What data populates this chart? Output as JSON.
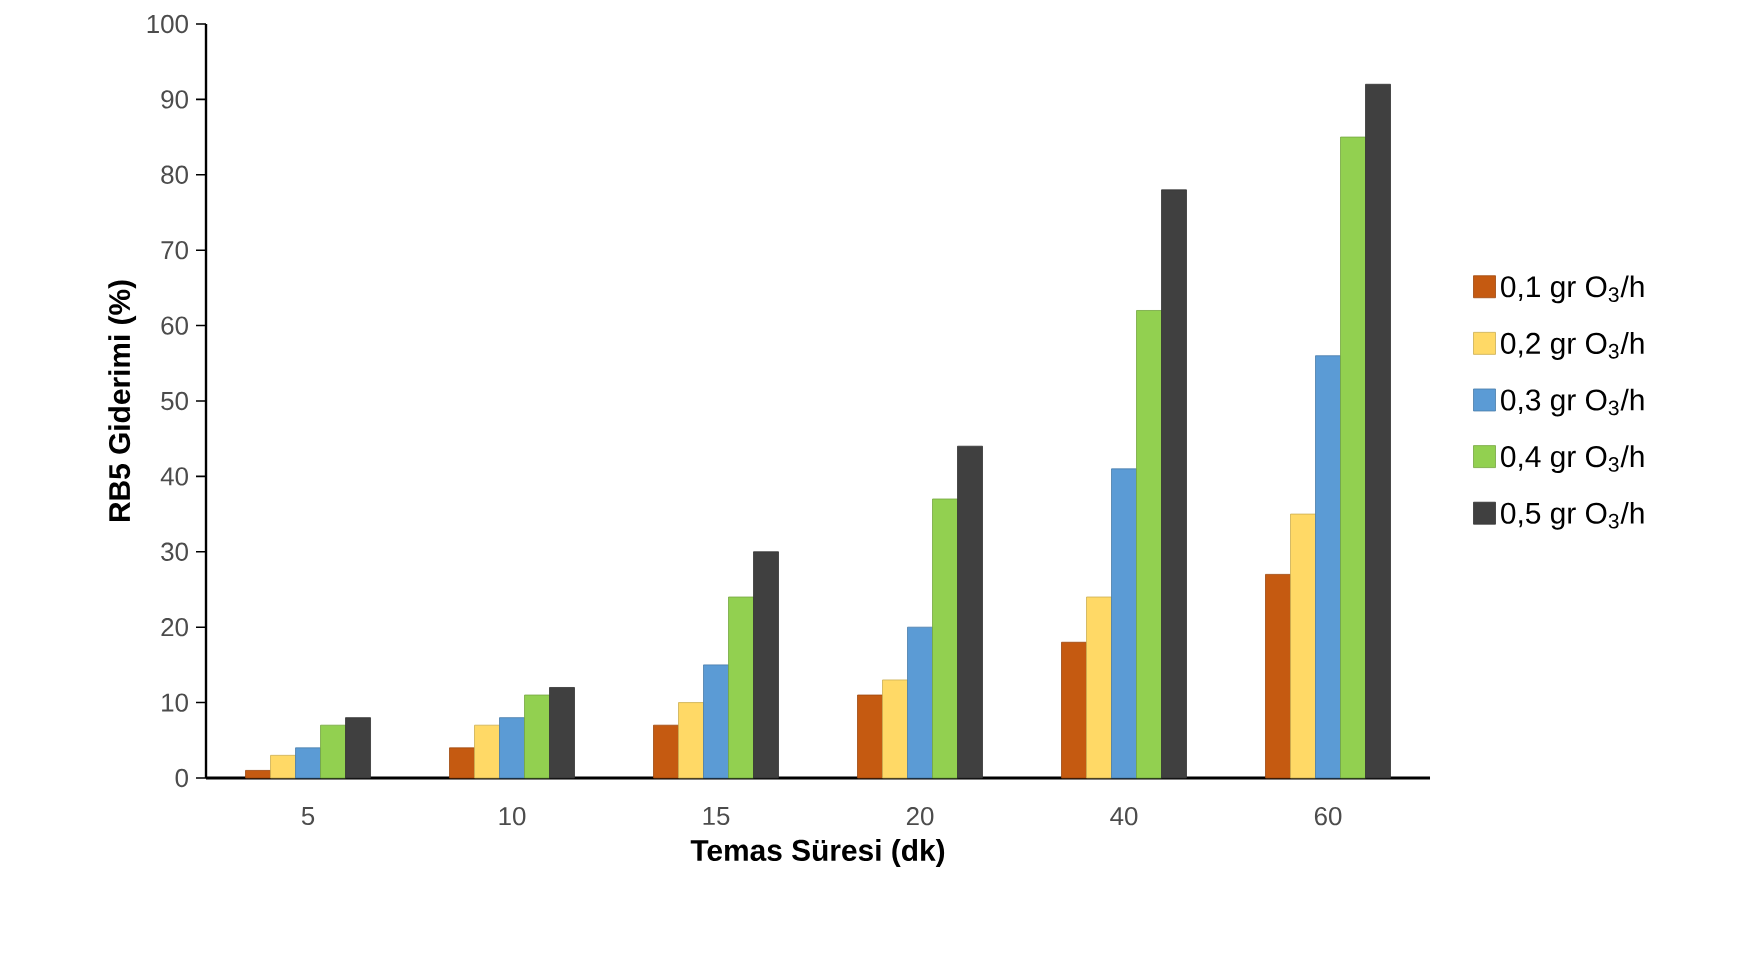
{
  "chart_data": {
    "type": "bar",
    "xlabel": "Temas Süresi (dk)",
    "ylabel": "RB5 Giderimi (%)",
    "categories": [
      "5",
      "10",
      "15",
      "20",
      "40",
      "60"
    ],
    "series": [
      {
        "name": "0,1 gr O$_{3}$/h",
        "color": "#c55a11",
        "values": [
          1,
          4,
          7,
          11,
          18,
          27
        ]
      },
      {
        "name": "0,2 gr O$_{3}$/h",
        "color": "#ffd966",
        "values": [
          3,
          7,
          10,
          13,
          24,
          35
        ]
      },
      {
        "name": "0,3 gr O$_{3}$/h",
        "color": "#5b9bd5",
        "values": [
          4,
          8,
          15,
          20,
          41,
          56
        ]
      },
      {
        "name": "0,4 gr O$_{3}$/h",
        "color": "#92d050",
        "values": [
          7,
          11,
          24,
          37,
          62,
          85
        ]
      },
      {
        "name": "0,5 gr O$_{3}$/h",
        "color": "#404040",
        "values": [
          8,
          12,
          30,
          44,
          78,
          92
        ]
      }
    ],
    "ylim": [
      0,
      100
    ],
    "yticks": [
      0,
      10,
      20,
      30,
      40,
      50,
      60,
      70,
      80,
      90,
      100
    ],
    "grid": false,
    "legend": "right"
  }
}
